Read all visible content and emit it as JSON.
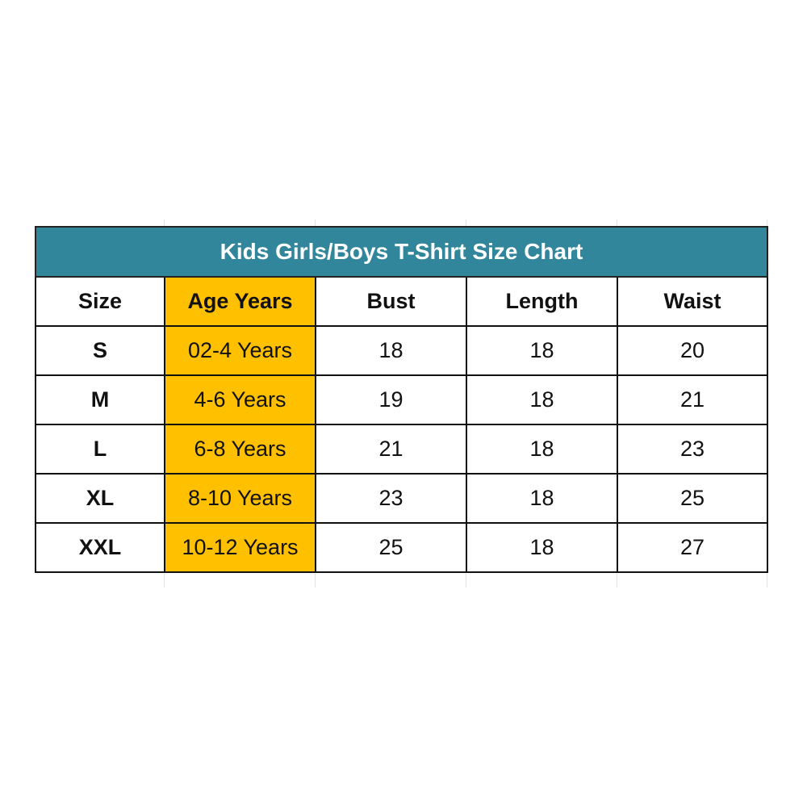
{
  "title": "Kids Girls/Boys T-Shirt Size Chart",
  "colors": {
    "title_bg": "#31869b",
    "age_column_bg": "#ffc000"
  },
  "columns": [
    "Size",
    "Age Years",
    "Bust",
    "Length",
    "Waist"
  ],
  "rows": [
    [
      "S",
      "02-4 Years",
      "18",
      "18",
      "20"
    ],
    [
      "M",
      "4-6 Years",
      "19",
      "18",
      "21"
    ],
    [
      "L",
      "6-8 Years",
      "21",
      "18",
      "23"
    ],
    [
      "XL",
      "8-10 Years",
      "23",
      "18",
      "25"
    ],
    [
      "XXL",
      "10-12 Years",
      "25",
      "18",
      "27"
    ]
  ]
}
